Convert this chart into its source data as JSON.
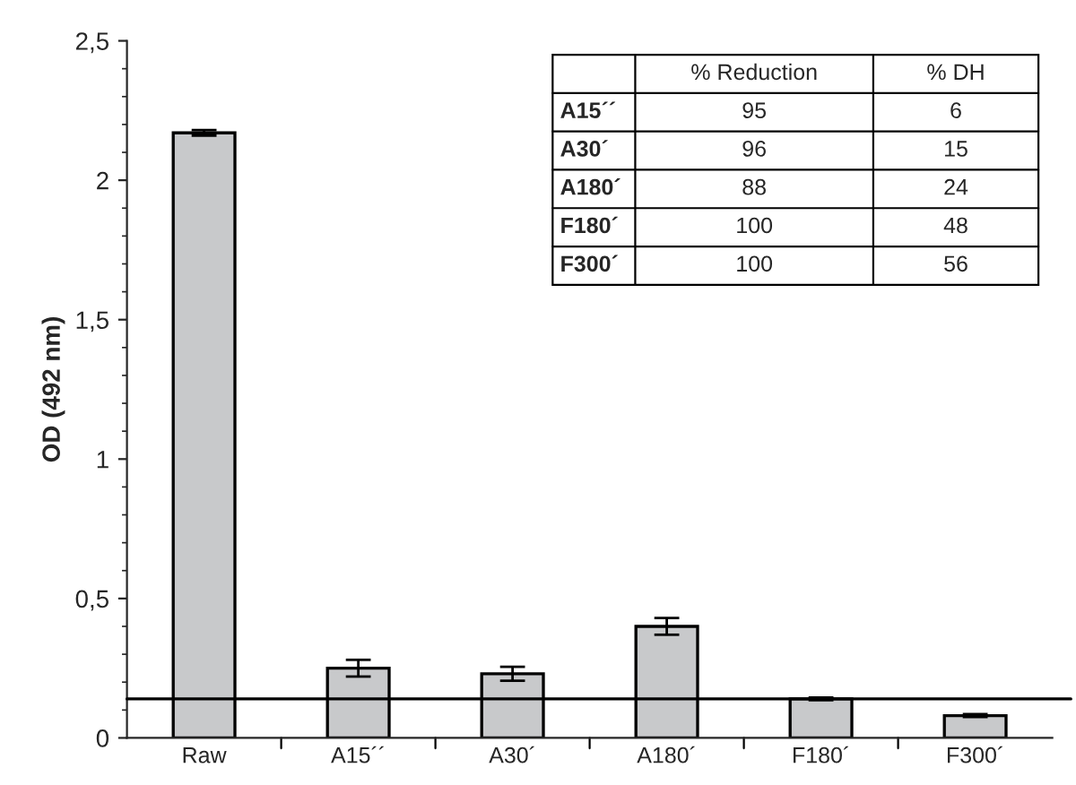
{
  "chart_data": {
    "type": "bar",
    "ylabel": "OD (492 nm)",
    "categories": [
      "Raw",
      "A15´´",
      "A30´",
      "A180´",
      "F180´",
      "F300´"
    ],
    "values": [
      2.17,
      0.25,
      0.23,
      0.4,
      0.14,
      0.08
    ],
    "errors": [
      0.01,
      0.03,
      0.025,
      0.03,
      0.005,
      0.005
    ],
    "color": "#c8c9cb",
    "ylim": [
      0,
      2.5
    ],
    "yticks": [
      0,
      {
        "value": 0.5,
        "label": "0,5"
      },
      1,
      {
        "value": 1.5,
        "label": "1,5"
      },
      2,
      {
        "value": 2.5,
        "label": "2,5"
      }
    ],
    "ref_lines": [
      {
        "axis": "y",
        "value": 0.14,
        "color": "#000000"
      }
    ],
    "annotations": [
      "% Reduction",
      "% DH",
      "A15´´",
      "95",
      "6",
      "A30´",
      "96",
      "15",
      "A180´",
      "88",
      "24",
      "F180´",
      "100",
      "48",
      "F300´",
      "100",
      "56"
    ],
    "grid": false
  }
}
